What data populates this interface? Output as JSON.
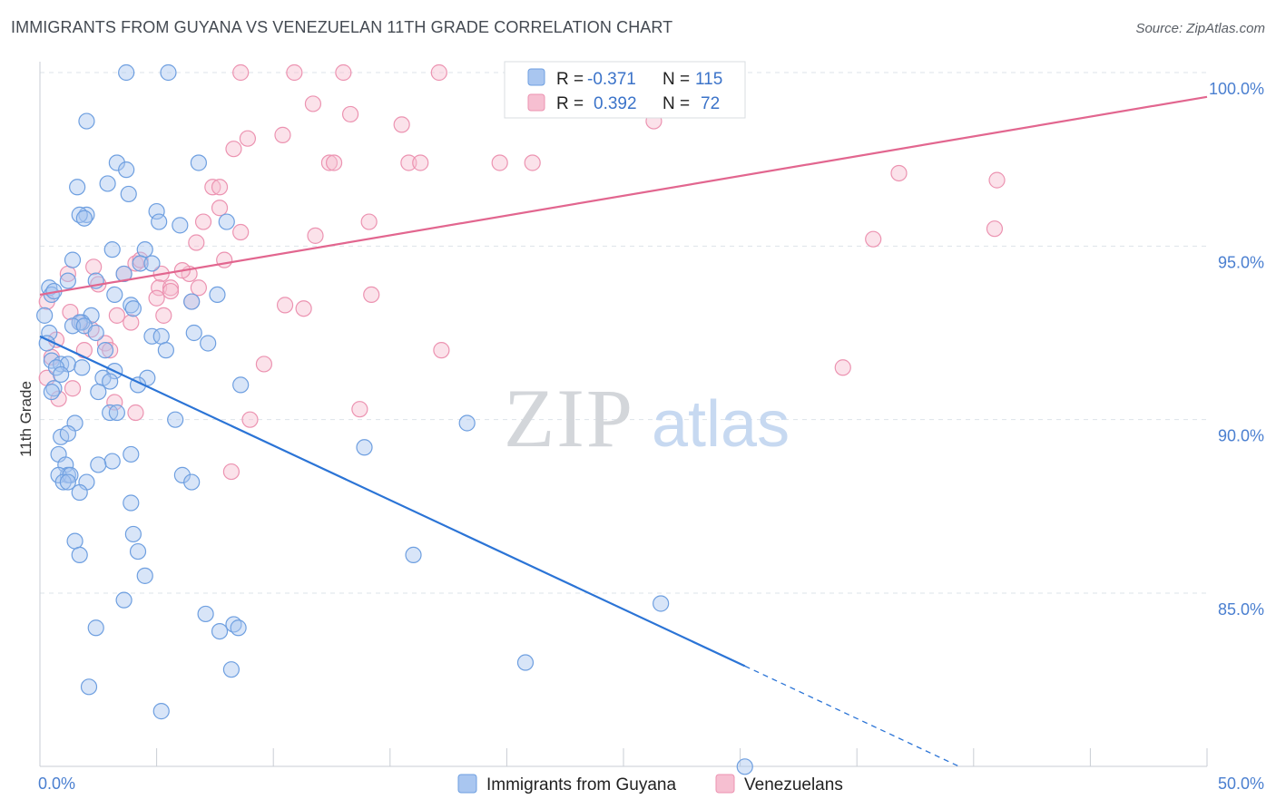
{
  "title": "IMMIGRANTS FROM GUYANA VS VENEZUELAN 11TH GRADE CORRELATION CHART",
  "source": "Source: ZipAtlas.com",
  "colors": {
    "blue_fill": "#a9c6f0",
    "blue_stroke": "#6e9fe0",
    "blue_line": "#2b74d6",
    "pink_fill": "#f6bfd1",
    "pink_stroke": "#ec93b1",
    "pink_line": "#e2668f",
    "grid": "#dde3ea",
    "tick_text": "#4a7fd0"
  },
  "legend": {
    "blue": {
      "r_label": "R =",
      "r_value": "-0.371",
      "n_label": "N =",
      "n_value": "115"
    },
    "pink": {
      "r_label": "R =",
      "r_value": "0.392",
      "n_label": "N =",
      "n_value": "72"
    }
  },
  "chart_data": {
    "type": "scatter",
    "title": "IMMIGRANTS FROM GUYANA VS VENEZUELAN 11TH GRADE CORRELATION CHART",
    "xlabel": "",
    "ylabel": "11th Grade",
    "xlim": [
      0,
      50
    ],
    "ylim": [
      80,
      100.6
    ],
    "x_tick_labels": [
      "0.0%",
      "50.0%"
    ],
    "y_ticks": [
      85,
      90,
      95,
      100
    ],
    "y_tick_labels": [
      "85.0%",
      "90.0%",
      "95.0%",
      "100.0%"
    ],
    "grid": "horizontal dashed",
    "legend_position": "top-center",
    "watermark": {
      "part1": "ZIP",
      "part2": "atlas"
    },
    "series": [
      {
        "name": "Immigrants from Guyana",
        "color": "#a9c6f0",
        "trend": {
          "x": [
            0,
            30.2
          ],
          "y": [
            92.4,
            82.9
          ],
          "dashed_to": [
            39.4,
            80.0
          ]
        },
        "points": [
          [
            3.7,
            100
          ],
          [
            5.5,
            100
          ],
          [
            2.0,
            98.6
          ],
          [
            3.3,
            97.4
          ],
          [
            6.8,
            97.4
          ],
          [
            3.7,
            97.2
          ],
          [
            1.6,
            96.7
          ],
          [
            2.9,
            96.8
          ],
          [
            3.8,
            96.5
          ],
          [
            5.0,
            96.0
          ],
          [
            2.0,
            95.9
          ],
          [
            1.7,
            95.9
          ],
          [
            1.9,
            95.8
          ],
          [
            5.1,
            95.7
          ],
          [
            6.0,
            95.6
          ],
          [
            8.0,
            95.7
          ],
          [
            3.1,
            94.9
          ],
          [
            4.5,
            94.9
          ],
          [
            1.4,
            94.6
          ],
          [
            4.3,
            94.5
          ],
          [
            4.8,
            94.5
          ],
          [
            3.6,
            94.2
          ],
          [
            2.4,
            94.0
          ],
          [
            1.2,
            94.0
          ],
          [
            0.4,
            93.8
          ],
          [
            0.5,
            93.6
          ],
          [
            0.6,
            93.7
          ],
          [
            3.2,
            93.6
          ],
          [
            7.6,
            93.6
          ],
          [
            6.5,
            93.4
          ],
          [
            3.9,
            93.3
          ],
          [
            4.0,
            93.2
          ],
          [
            0.2,
            93.0
          ],
          [
            2.2,
            93.0
          ],
          [
            1.8,
            92.8
          ],
          [
            1.7,
            92.8
          ],
          [
            1.4,
            92.7
          ],
          [
            1.9,
            92.7
          ],
          [
            0.4,
            92.5
          ],
          [
            2.4,
            92.5
          ],
          [
            4.8,
            92.4
          ],
          [
            5.2,
            92.4
          ],
          [
            6.6,
            92.5
          ],
          [
            0.3,
            92.2
          ],
          [
            7.2,
            92.2
          ],
          [
            5.4,
            92.0
          ],
          [
            2.8,
            92.0
          ],
          [
            0.5,
            91.7
          ],
          [
            0.9,
            91.6
          ],
          [
            1.2,
            91.6
          ],
          [
            0.7,
            91.5
          ],
          [
            1.8,
            91.5
          ],
          [
            3.2,
            91.4
          ],
          [
            0.9,
            91.3
          ],
          [
            4.6,
            91.2
          ],
          [
            2.7,
            91.2
          ],
          [
            3.0,
            91.1
          ],
          [
            4.2,
            91.0
          ],
          [
            0.6,
            90.9
          ],
          [
            8.6,
            91.0
          ],
          [
            0.5,
            90.8
          ],
          [
            2.5,
            90.8
          ],
          [
            3.0,
            90.2
          ],
          [
            3.3,
            90.2
          ],
          [
            5.8,
            90.0
          ],
          [
            1.5,
            89.9
          ],
          [
            18.3,
            89.9
          ],
          [
            0.9,
            89.5
          ],
          [
            1.2,
            89.6
          ],
          [
            3.1,
            88.8
          ],
          [
            13.9,
            89.2
          ],
          [
            0.8,
            89.0
          ],
          [
            3.9,
            89.0
          ],
          [
            1.1,
            88.7
          ],
          [
            2.5,
            88.7
          ],
          [
            1.2,
            88.4
          ],
          [
            0.8,
            88.4
          ],
          [
            1.3,
            88.4
          ],
          [
            6.1,
            88.4
          ],
          [
            1.0,
            88.2
          ],
          [
            2.0,
            88.2
          ],
          [
            1.2,
            88.2
          ],
          [
            6.5,
            88.2
          ],
          [
            1.7,
            87.9
          ],
          [
            3.9,
            87.6
          ],
          [
            4.0,
            86.7
          ],
          [
            1.5,
            86.5
          ],
          [
            1.7,
            86.1
          ],
          [
            4.2,
            86.2
          ],
          [
            16.0,
            86.1
          ],
          [
            4.5,
            85.5
          ],
          [
            3.6,
            84.8
          ],
          [
            26.6,
            84.7
          ],
          [
            7.1,
            84.4
          ],
          [
            2.4,
            84.0
          ],
          [
            8.3,
            84.1
          ],
          [
            7.7,
            83.9
          ],
          [
            8.5,
            84.0
          ],
          [
            8.2,
            82.8
          ],
          [
            20.8,
            83.0
          ],
          [
            2.1,
            82.3
          ],
          [
            5.2,
            81.6
          ],
          [
            30.2,
            80.0
          ]
        ]
      },
      {
        "name": "Venezuelans",
        "color": "#f6bfd1",
        "trend": {
          "x": [
            0,
            50
          ],
          "y": [
            93.6,
            99.3
          ]
        },
        "points": [
          [
            8.6,
            100
          ],
          [
            10.9,
            100
          ],
          [
            13.0,
            100
          ],
          [
            17.1,
            100
          ],
          [
            11.7,
            99.1
          ],
          [
            13.3,
            98.8
          ],
          [
            15.5,
            98.5
          ],
          [
            26.3,
            98.6
          ],
          [
            8.9,
            98.1
          ],
          [
            10.4,
            98.2
          ],
          [
            8.3,
            97.8
          ],
          [
            12.4,
            97.4
          ],
          [
            12.6,
            97.4
          ],
          [
            15.8,
            97.4
          ],
          [
            16.3,
            97.4
          ],
          [
            19.7,
            97.4
          ],
          [
            21.1,
            97.4
          ],
          [
            36.8,
            97.1
          ],
          [
            41.0,
            96.9
          ],
          [
            7.4,
            96.7
          ],
          [
            7.7,
            96.7
          ],
          [
            7.7,
            96.1
          ],
          [
            7.0,
            95.7
          ],
          [
            14.1,
            95.7
          ],
          [
            8.6,
            95.4
          ],
          [
            11.8,
            95.3
          ],
          [
            40.9,
            95.5
          ],
          [
            35.7,
            95.2
          ],
          [
            6.7,
            95.1
          ],
          [
            3.6,
            94.2
          ],
          [
            5.2,
            94.2
          ],
          [
            4.1,
            94.5
          ],
          [
            4.3,
            94.6
          ],
          [
            6.4,
            94.2
          ],
          [
            7.9,
            94.6
          ],
          [
            2.3,
            94.4
          ],
          [
            6.1,
            94.3
          ],
          [
            1.2,
            94.2
          ],
          [
            2.5,
            93.9
          ],
          [
            5.1,
            93.8
          ],
          [
            5.6,
            93.8
          ],
          [
            6.8,
            93.8
          ],
          [
            14.2,
            93.6
          ],
          [
            5.0,
            93.5
          ],
          [
            6.5,
            93.4
          ],
          [
            0.3,
            93.4
          ],
          [
            10.5,
            93.3
          ],
          [
            11.3,
            93.2
          ],
          [
            1.3,
            93.1
          ],
          [
            3.3,
            93.0
          ],
          [
            5.3,
            93.0
          ],
          [
            1.7,
            92.8
          ],
          [
            3.9,
            92.8
          ],
          [
            2.2,
            92.6
          ],
          [
            0.7,
            92.3
          ],
          [
            2.8,
            92.2
          ],
          [
            3.0,
            92.0
          ],
          [
            1.9,
            92.0
          ],
          [
            17.2,
            92.0
          ],
          [
            0.5,
            91.8
          ],
          [
            9.6,
            91.6
          ],
          [
            34.4,
            91.5
          ],
          [
            0.3,
            91.2
          ],
          [
            1.4,
            90.9
          ],
          [
            0.8,
            90.6
          ],
          [
            3.2,
            90.5
          ],
          [
            4.1,
            90.2
          ],
          [
            13.7,
            90.3
          ],
          [
            9.0,
            90.0
          ],
          [
            8.2,
            88.5
          ],
          [
            5.6,
            93.7
          ]
        ]
      }
    ]
  }
}
